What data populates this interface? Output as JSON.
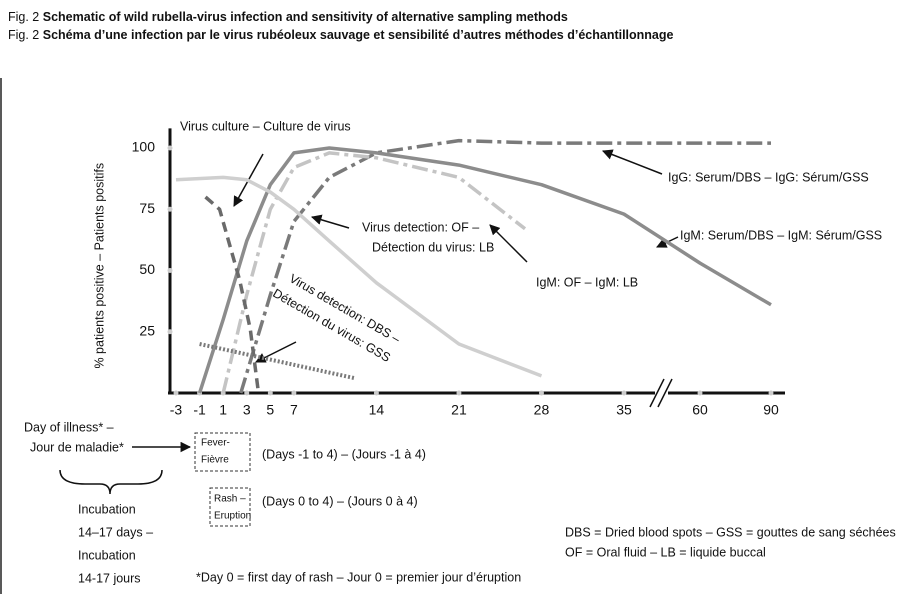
{
  "chart_data": {
    "type": "line",
    "titles": [
      {
        "label": "Fig. 2",
        "text": "Schematic of wild rubella-virus infection and sensitivity of alternative sampling methods"
      },
      {
        "label": "Fig. 2",
        "text": "Schéma d’une infection par le virus rubéoleux sauvage et sensibilité d’autres méthodes d’échantillonnage"
      }
    ],
    "y_label": "% patients positive – Patients positifs",
    "ylim": [
      0,
      108
    ],
    "yticks": [
      25,
      50,
      75,
      100
    ],
    "xlim": [
      -3,
      90
    ],
    "xticks": [
      -3,
      -1,
      1,
      3,
      5,
      7,
      14,
      21,
      28,
      35,
      60,
      90
    ],
    "x_break": [
      35,
      60
    ],
    "series": [
      {
        "color": "#7a7a7a",
        "dash": "dashdot",
        "x": [
          2.5,
          5,
          7,
          10,
          14,
          21,
          28,
          35,
          60,
          90
        ],
        "values": [
          0,
          40,
          70,
          88,
          98,
          103,
          102,
          102,
          102,
          102
        ]
      },
      {
        "color": "#8c8c8c",
        "dash": "solid",
        "x": [
          -1,
          1,
          3,
          5,
          7,
          10,
          14,
          21,
          28,
          35,
          60,
          90
        ],
        "values": [
          0,
          30,
          62,
          85,
          98,
          100,
          98,
          93,
          85,
          73,
          53,
          36
        ]
      },
      {
        "color": "#c4c4c4",
        "dash": "dashdot",
        "x": [
          1,
          3,
          5,
          7,
          10,
          14,
          21,
          26.6
        ],
        "values": [
          0,
          40,
          75,
          92,
          98,
          96,
          88,
          67
        ]
      },
      {
        "color": "#cfcfcf",
        "dash": "solid",
        "x": [
          -3,
          1,
          3,
          5,
          7,
          10,
          14,
          21,
          28
        ],
        "values": [
          87,
          88,
          87,
          82,
          75,
          62,
          45,
          20,
          7
        ]
      },
      {
        "color": "#6a6a6a",
        "dash": "dashed",
        "x": [
          -0.5,
          0.7,
          2.4,
          3.3,
          4
        ],
        "values": [
          80,
          75,
          46,
          26,
          0
        ]
      },
      {
        "color": "#7a7a7a",
        "dash": "dotted",
        "x": [
          -1,
          12.2
        ],
        "values": [
          20,
          6
        ]
      }
    ],
    "annotations": [
      {
        "lines": [
          "Virus culture – Culture de virus"
        ]
      },
      {
        "lines": [
          "Virus detection: OF –",
          "Détection du virus: LB"
        ]
      },
      {
        "lines": [
          "Virus detection: DBS –",
          "Détection du virus: GSS"
        ]
      },
      {
        "lines": [
          "IgM: OF – IgM: LB"
        ]
      },
      {
        "lines": [
          "IgG: Serum/DBS – IgG: Sérum/GSS"
        ]
      },
      {
        "lines": [
          "IgM: Serum/DBS – IgM: Sérum/GSS"
        ]
      }
    ],
    "day_label": [
      "Day of illness* –",
      "Jour de maladie*"
    ],
    "incubation": [
      "Incubation",
      "14–17 days –",
      "Incubation",
      "14-17 jours"
    ],
    "fever": {
      "box": [
        "Fever-",
        "Fièvre"
      ],
      "text": "(Days -1 to 4) – (Jours -1 à 4)"
    },
    "rash": {
      "box": [
        "Rash –",
        "Eruption"
      ],
      "text": "(Days 0 to 4) – (Jours 0 à 4)"
    },
    "footnote": "*Day 0 = first day of rash – Jour 0 = premier jour d’éruption",
    "abbreviations": [
      "DBS = Dried blood spots – GSS = gouttes de sang séchées",
      "OF = Oral fluid – LB = liquide buccal"
    ]
  }
}
